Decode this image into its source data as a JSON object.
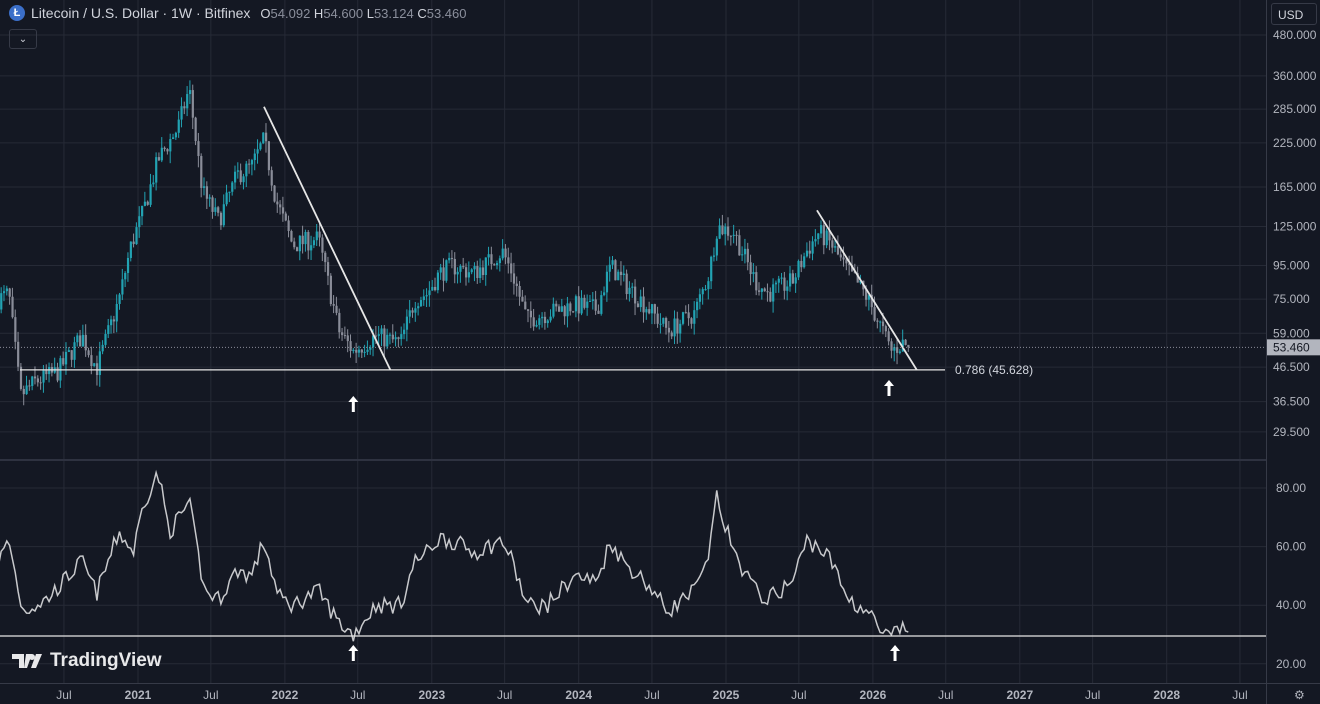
{
  "header": {
    "logo_letter": "Ł",
    "title": "Litecoin / U.S. Dollar · 1W · Bitfinex",
    "ohlc": [
      {
        "k": "O",
        "v": "54.092"
      },
      {
        "k": "H",
        "v": "54.600"
      },
      {
        "k": "L",
        "v": "53.124"
      },
      {
        "k": "C",
        "v": "53.460"
      }
    ]
  },
  "currency_label": "USD",
  "brand": "TradingView",
  "colors": {
    "background": "#141823",
    "grid": "#262a36",
    "up": "#22a3b3",
    "down": "#8a8d99",
    "line": "#e6e6e6",
    "indicator": "#c8c9cc"
  },
  "chart_data": [
    {
      "type": "candlestick",
      "scale": "log",
      "ylim": [
        29.5,
        480
      ],
      "yticks": [
        "480.000",
        "360.000",
        "285.000",
        "225.000",
        "165.000",
        "125.000",
        "95.000",
        "75.000",
        "59.000",
        "46.500",
        "36.500",
        "29.500"
      ],
      "last_price": "53.460",
      "approx_path": [
        [
          "2020-01-20",
          75
        ],
        [
          "2020-02-15",
          78
        ],
        [
          "2020-03-15",
          38
        ],
        [
          "2020-04-20",
          42
        ],
        [
          "2020-06-15",
          45
        ],
        [
          "2020-08-15",
          58
        ],
        [
          "2020-09-20",
          46
        ],
        [
          "2020-11-15",
          75
        ],
        [
          "2020-12-15",
          110
        ],
        [
          "2021-01-15",
          140
        ],
        [
          "2021-02-20",
          200
        ],
        [
          "2021-04-10",
          250
        ],
        [
          "2021-05-08",
          330
        ],
        [
          "2021-06-10",
          160
        ],
        [
          "2021-07-20",
          130
        ],
        [
          "2021-09-05",
          180
        ],
        [
          "2021-10-10",
          190
        ],
        [
          "2021-11-10",
          230
        ],
        [
          "2021-12-10",
          150
        ],
        [
          "2022-01-20",
          110
        ],
        [
          "2022-03-25",
          115
        ],
        [
          "2022-05-15",
          60
        ],
        [
          "2022-06-20",
          52
        ],
        [
          "2022-08-15",
          58
        ],
        [
          "2022-10-15",
          55
        ],
        [
          "2022-11-20",
          75
        ],
        [
          "2022-12-20",
          78
        ],
        [
          "2023-01-20",
          90
        ],
        [
          "2023-02-20",
          95
        ],
        [
          "2023-04-15",
          90
        ],
        [
          "2023-06-25",
          105
        ],
        [
          "2023-07-20",
          90
        ],
        [
          "2023-08-25",
          65
        ],
        [
          "2023-10-15",
          68
        ],
        [
          "2023-12-20",
          72
        ],
        [
          "2024-02-15",
          70
        ],
        [
          "2024-03-20",
          95
        ],
        [
          "2024-04-20",
          85
        ],
        [
          "2024-06-15",
          72
        ],
        [
          "2024-08-10",
          60
        ],
        [
          "2024-10-15",
          68
        ],
        [
          "2024-11-20",
          90
        ],
        [
          "2024-12-10",
          125
        ],
        [
          "2025-01-20",
          120
        ],
        [
          "2025-03-15",
          85
        ],
        [
          "2025-04-15",
          78
        ],
        [
          "2025-06-15",
          85
        ],
        [
          "2025-07-20",
          105
        ],
        [
          "2025-08-20",
          120
        ],
        [
          "2025-09-20",
          110
        ],
        [
          "2025-10-20",
          95
        ],
        [
          "2025-11-20",
          85
        ],
        [
          "2025-12-20",
          75
        ],
        [
          "2026-01-25",
          60
        ],
        [
          "2026-02-15",
          52
        ],
        [
          "2026-03-15",
          55
        ],
        [
          "2026-04-05",
          53.46
        ]
      ],
      "annotations": {
        "fib_label": "0.786 (45.628)",
        "fib_level": 45.628,
        "trendlines": [
          [
            [
              "2021-11-10",
              290
            ],
            [
              "2022-09-20",
              45.628
            ]
          ],
          [
            [
              "2025-08-15",
              140
            ],
            [
              "2026-04-20",
              45.628
            ]
          ]
        ],
        "arrows": [
          "2022-06-20",
          "2026-02-10"
        ]
      }
    },
    {
      "type": "line",
      "ylim": [
        15,
        90
      ],
      "yticks": [
        "80.00",
        "60.00",
        "40.00",
        "20.00"
      ],
      "hline": 29.5,
      "approx_path": [
        [
          "2020-01-20",
          55
        ],
        [
          "2020-02-15",
          62
        ],
        [
          "2020-03-20",
          38
        ],
        [
          "2020-05-20",
          42
        ],
        [
          "2020-08-15",
          55
        ],
        [
          "2020-09-20",
          44
        ],
        [
          "2020-11-15",
          65
        ],
        [
          "2020-12-20",
          58
        ],
        [
          "2021-01-15",
          75
        ],
        [
          "2021-02-20",
          85
        ],
        [
          "2021-03-20",
          65
        ],
        [
          "2021-05-08",
          75
        ],
        [
          "2021-06-15",
          45
        ],
        [
          "2021-07-20",
          42
        ],
        [
          "2021-09-05",
          52
        ],
        [
          "2021-10-10",
          50
        ],
        [
          "2021-11-10",
          62
        ],
        [
          "2021-12-15",
          43
        ],
        [
          "2022-01-20",
          40
        ],
        [
          "2022-03-25",
          45
        ],
        [
          "2022-05-15",
          34
        ],
        [
          "2022-06-20",
          30
        ],
        [
          "2022-08-15",
          40
        ],
        [
          "2022-10-15",
          40
        ],
        [
          "2022-11-20",
          55
        ],
        [
          "2022-12-20",
          58
        ],
        [
          "2023-01-20",
          63
        ],
        [
          "2023-02-20",
          62
        ],
        [
          "2023-04-15",
          58
        ],
        [
          "2023-06-25",
          62
        ],
        [
          "2023-07-20",
          55
        ],
        [
          "2023-08-25",
          40
        ],
        [
          "2023-10-15",
          40
        ],
        [
          "2023-12-20",
          50
        ],
        [
          "2024-02-15",
          48
        ],
        [
          "2024-03-20",
          62
        ],
        [
          "2024-04-20",
          55
        ],
        [
          "2024-06-15",
          48
        ],
        [
          "2024-08-10",
          38
        ],
        [
          "2024-10-15",
          45
        ],
        [
          "2024-11-20",
          55
        ],
        [
          "2024-12-05",
          78
        ],
        [
          "2025-01-20",
          58
        ],
        [
          "2025-03-15",
          45
        ],
        [
          "2025-04-15",
          42
        ],
        [
          "2025-06-15",
          48
        ],
        [
          "2025-07-20",
          62
        ],
        [
          "2025-08-20",
          60
        ],
        [
          "2025-09-20",
          55
        ],
        [
          "2025-10-20",
          45
        ],
        [
          "2025-11-20",
          40
        ],
        [
          "2025-12-20",
          38
        ],
        [
          "2026-01-25",
          30
        ],
        [
          "2026-02-15",
          29
        ],
        [
          "2026-03-15",
          32
        ],
        [
          "2026-04-05",
          31
        ]
      ],
      "arrows": [
        "2022-06-20",
        "2026-02-25"
      ]
    }
  ],
  "time_axis": [
    [
      "2020-07-01",
      "Jul"
    ],
    [
      "2021-01-01",
      "2021"
    ],
    [
      "2021-07-01",
      "Jul"
    ],
    [
      "2022-01-01",
      "2022"
    ],
    [
      "2022-07-01",
      "Jul"
    ],
    [
      "2023-01-01",
      "2023"
    ],
    [
      "2023-07-01",
      "Jul"
    ],
    [
      "2024-01-01",
      "2024"
    ],
    [
      "2024-07-01",
      "Jul"
    ],
    [
      "2025-01-01",
      "2025"
    ],
    [
      "2025-07-01",
      "Jul"
    ],
    [
      "2026-01-01",
      "2026"
    ],
    [
      "2026-07-01",
      "Jul"
    ],
    [
      "2027-01-01",
      "2027"
    ],
    [
      "2027-07-01",
      "Jul"
    ],
    [
      "2028-01-01",
      "2028"
    ],
    [
      "2028-07-01",
      "Jul"
    ]
  ]
}
